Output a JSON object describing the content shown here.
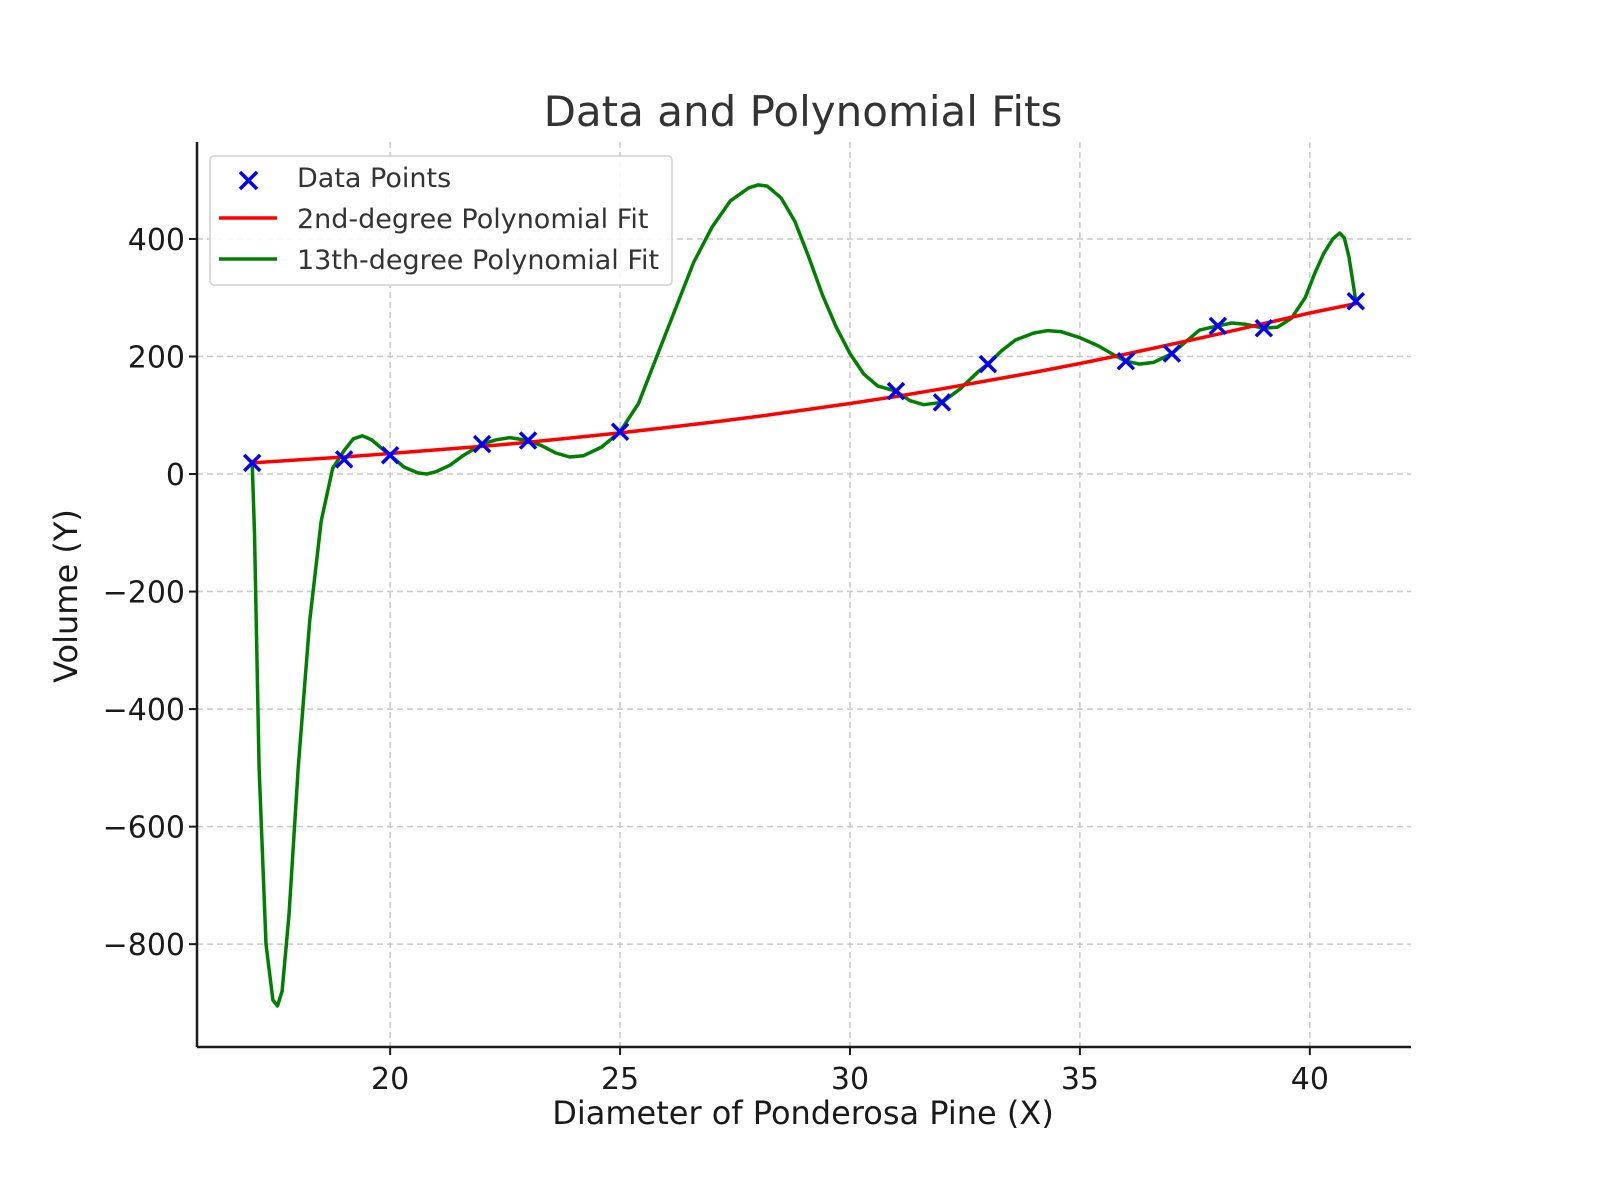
{
  "chart_data": {
    "type": "scatter",
    "title": "Data and Polynomial Fits",
    "xlabel": "Diameter of Ponderosa Pine (X)",
    "ylabel": "Volume (Y)",
    "xlim": [
      15.8,
      42.2
    ],
    "ylim": [
      -975,
      565
    ],
    "x_ticks": [
      20,
      25,
      30,
      35,
      40
    ],
    "y_ticks": [
      -800,
      -600,
      -400,
      -200,
      0,
      200,
      400
    ],
    "x_tick_labels": [
      "20",
      "25",
      "30",
      "35",
      "40"
    ],
    "y_tick_labels": [
      "−800",
      "−600",
      "−400",
      "−200",
      "0",
      "200",
      "400"
    ],
    "grid": true,
    "legend_position": "top-left",
    "series": [
      {
        "name": "Data Points",
        "kind": "scatter",
        "marker": "x",
        "color": "#0000ff",
        "points": [
          [
            17,
            19
          ],
          [
            19,
            25
          ],
          [
            20,
            32
          ],
          [
            22,
            51
          ],
          [
            23,
            57
          ],
          [
            25,
            72
          ],
          [
            31,
            141
          ],
          [
            32,
            122
          ],
          [
            33,
            187
          ],
          [
            36,
            192
          ],
          [
            37,
            205
          ],
          [
            38,
            252
          ],
          [
            39,
            248
          ],
          [
            41,
            294
          ]
        ]
      },
      {
        "name": "2nd-degree Polynomial Fit",
        "kind": "line",
        "color": "#ff0000",
        "points": [
          [
            17,
            19
          ],
          [
            18,
            24
          ],
          [
            19,
            29
          ],
          [
            20,
            35
          ],
          [
            21,
            41
          ],
          [
            22,
            47
          ],
          [
            23,
            54
          ],
          [
            24,
            62
          ],
          [
            25,
            70
          ],
          [
            26,
            79
          ],
          [
            27,
            88
          ],
          [
            28,
            98
          ],
          [
            29,
            109
          ],
          [
            30,
            120
          ],
          [
            31,
            132
          ],
          [
            32,
            145
          ],
          [
            33,
            159
          ],
          [
            34,
            173
          ],
          [
            35,
            188
          ],
          [
            36,
            204
          ],
          [
            37,
            221
          ],
          [
            38,
            238
          ],
          [
            39,
            256
          ],
          [
            40,
            274
          ],
          [
            41,
            290
          ]
        ]
      },
      {
        "name": "13th-degree Polynomial Fit",
        "kind": "line",
        "color": "#008000",
        "points": [
          [
            17,
            19
          ],
          [
            17.05,
            -100
          ],
          [
            17.15,
            -500
          ],
          [
            17.3,
            -800
          ],
          [
            17.45,
            -895
          ],
          [
            17.55,
            -905
          ],
          [
            17.65,
            -880
          ],
          [
            17.8,
            -750
          ],
          [
            18,
            -500
          ],
          [
            18.25,
            -250
          ],
          [
            18.5,
            -80
          ],
          [
            18.75,
            10
          ],
          [
            19,
            40
          ],
          [
            19.2,
            60
          ],
          [
            19.4,
            65
          ],
          [
            19.6,
            58
          ],
          [
            19.8,
            45
          ],
          [
            20,
            32
          ],
          [
            20.3,
            12
          ],
          [
            20.6,
            2
          ],
          [
            20.8,
            0
          ],
          [
            21,
            4
          ],
          [
            21.3,
            15
          ],
          [
            21.6,
            32
          ],
          [
            22,
            51
          ],
          [
            22.3,
            58
          ],
          [
            22.6,
            62
          ],
          [
            23,
            57
          ],
          [
            23.3,
            48
          ],
          [
            23.6,
            36
          ],
          [
            23.9,
            29
          ],
          [
            24.2,
            31
          ],
          [
            24.6,
            46
          ],
          [
            25,
            72
          ],
          [
            25.4,
            120
          ],
          [
            25.8,
            200
          ],
          [
            26.2,
            280
          ],
          [
            26.6,
            360
          ],
          [
            27,
            420
          ],
          [
            27.4,
            465
          ],
          [
            27.8,
            487
          ],
          [
            28,
            492
          ],
          [
            28.2,
            490
          ],
          [
            28.5,
            470
          ],
          [
            28.8,
            430
          ],
          [
            29.1,
            370
          ],
          [
            29.4,
            305
          ],
          [
            29.7,
            250
          ],
          [
            30,
            205
          ],
          [
            30.3,
            170
          ],
          [
            30.6,
            150
          ],
          [
            31,
            141
          ],
          [
            31.3,
            125
          ],
          [
            31.6,
            118
          ],
          [
            32,
            122
          ],
          [
            32.4,
            145
          ],
          [
            32.8,
            175
          ],
          [
            33,
            187
          ],
          [
            33.3,
            210
          ],
          [
            33.6,
            228
          ],
          [
            34,
            240
          ],
          [
            34.3,
            244
          ],
          [
            34.6,
            242
          ],
          [
            35,
            232
          ],
          [
            35.4,
            218
          ],
          [
            35.8,
            200
          ],
          [
            36,
            192
          ],
          [
            36.3,
            187
          ],
          [
            36.6,
            190
          ],
          [
            37,
            205
          ],
          [
            37.3,
            225
          ],
          [
            37.6,
            245
          ],
          [
            38,
            252
          ],
          [
            38.3,
            257
          ],
          [
            38.6,
            255
          ],
          [
            39,
            248
          ],
          [
            39.3,
            250
          ],
          [
            39.6,
            265
          ],
          [
            39.9,
            300
          ],
          [
            40.1,
            340
          ],
          [
            40.3,
            375
          ],
          [
            40.5,
            400
          ],
          [
            40.65,
            410
          ],
          [
            40.75,
            402
          ],
          [
            40.85,
            370
          ],
          [
            40.95,
            320
          ],
          [
            41,
            294
          ]
        ]
      }
    ]
  }
}
